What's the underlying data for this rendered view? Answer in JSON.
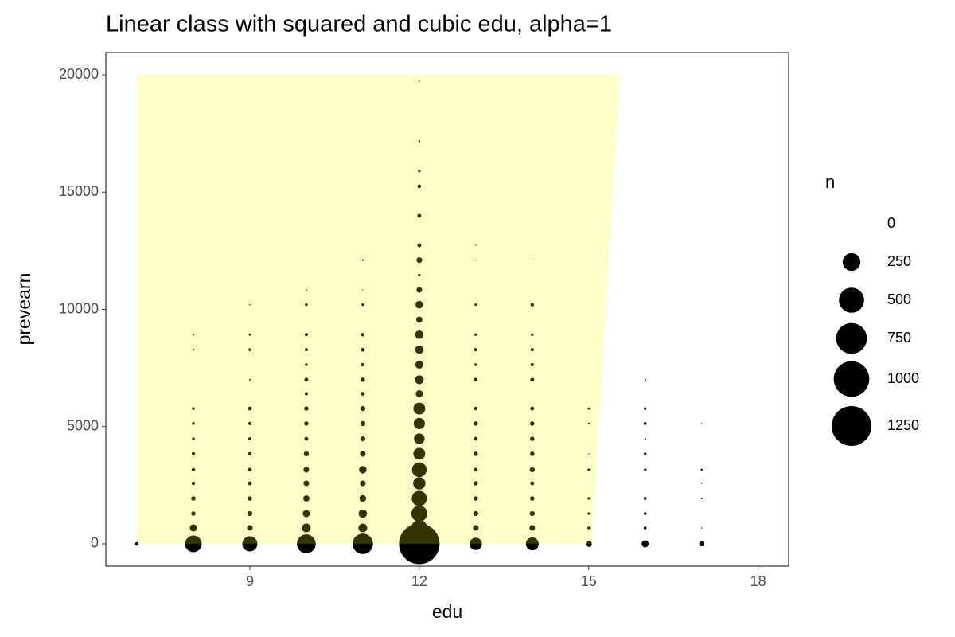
{
  "chart_data": {
    "type": "scatter",
    "title": "Linear class with squared and cubic edu, alpha=1",
    "xlabel": "edu",
    "ylabel": "prevearn",
    "x": [
      7,
      8,
      8,
      8,
      8,
      8,
      8,
      8,
      8,
      8,
      8,
      8,
      8,
      9,
      9,
      9,
      9,
      9,
      9,
      9,
      9,
      9,
      9,
      9,
      9,
      9,
      9,
      10,
      10,
      10,
      10,
      10,
      10,
      10,
      10,
      10,
      10,
      10,
      10,
      10,
      10,
      10,
      10,
      10,
      11,
      11,
      11,
      11,
      11,
      11,
      11,
      11,
      11,
      11,
      11,
      11,
      11,
      11,
      11,
      11,
      11,
      11,
      12,
      12,
      12,
      12,
      12,
      12,
      12,
      12,
      12,
      12,
      12,
      12,
      12,
      12,
      12,
      12,
      12,
      12,
      12,
      12,
      12,
      12,
      12,
      12,
      12,
      12,
      13,
      13,
      13,
      13,
      13,
      13,
      13,
      13,
      13,
      13,
      13,
      13,
      13,
      13,
      13,
      13,
      13,
      14,
      14,
      14,
      14,
      14,
      14,
      14,
      14,
      14,
      14,
      14,
      14,
      14,
      14,
      14,
      14,
      15,
      15,
      15,
      15,
      15,
      15,
      15,
      15,
      16,
      16,
      16,
      16,
      16,
      16,
      16,
      16,
      16,
      16,
      17,
      17,
      17,
      17,
      17,
      17
    ],
    "y": [
      0,
      0,
      680,
      1290,
      1935,
      2580,
      3160,
      3840,
      4480,
      5130,
      5770,
      8280,
      8920,
      0,
      680,
      1290,
      1935,
      2580,
      3160,
      3840,
      4480,
      5130,
      5770,
      7000,
      8280,
      8920,
      10200,
      0,
      680,
      1290,
      1935,
      2580,
      3160,
      3840,
      4480,
      5130,
      5770,
      6400,
      7000,
      7640,
      8280,
      8920,
      10200,
      10830,
      0,
      680,
      1290,
      1935,
      2580,
      3160,
      3840,
      4480,
      5130,
      5770,
      6400,
      7000,
      7640,
      8280,
      8920,
      10200,
      10830,
      12100,
      0,
      680,
      1290,
      1935,
      2580,
      3160,
      3840,
      4480,
      5130,
      5770,
      6400,
      7000,
      7640,
      8280,
      8920,
      9560,
      10200,
      10830,
      11460,
      12100,
      12730,
      13990,
      15250,
      15900,
      17170,
      19720,
      0,
      680,
      1290,
      1935,
      2580,
      3160,
      3840,
      4480,
      5130,
      5770,
      7000,
      7640,
      8280,
      8920,
      10200,
      12100,
      12730,
      0,
      680,
      1290,
      1935,
      2580,
      3160,
      3840,
      4480,
      5130,
      5770,
      7000,
      7640,
      8280,
      8920,
      10200,
      12100,
      0,
      680,
      1290,
      1935,
      3160,
      3840,
      5130,
      5770,
      0,
      680,
      1290,
      1935,
      3160,
      3840,
      4480,
      5130,
      5770,
      7000,
      0,
      680,
      1935,
      2580,
      3160,
      5130
    ],
    "size": [
      10,
      220,
      40,
      15,
      15,
      10,
      10,
      8,
      6,
      6,
      6,
      3,
      3,
      180,
      25,
      20,
      15,
      12,
      12,
      10,
      8,
      8,
      12,
      2,
      6,
      4,
      1,
      280,
      60,
      40,
      30,
      25,
      25,
      20,
      12,
      15,
      15,
      8,
      12,
      6,
      8,
      8,
      6,
      2,
      330,
      60,
      55,
      35,
      25,
      45,
      25,
      20,
      20,
      20,
      12,
      15,
      10,
      12,
      10,
      6,
      1,
      2,
      1300,
      200,
      200,
      180,
      120,
      170,
      110,
      90,
      100,
      110,
      40,
      60,
      50,
      55,
      55,
      30,
      45,
      25,
      5,
      25,
      12,
      12,
      10,
      5,
      3,
      1,
      120,
      25,
      20,
      15,
      15,
      12,
      15,
      12,
      15,
      10,
      12,
      6,
      8,
      6,
      5,
      1,
      1,
      130,
      25,
      20,
      15,
      12,
      20,
      15,
      15,
      15,
      12,
      12,
      8,
      8,
      6,
      10,
      1,
      30,
      6,
      5,
      5,
      5,
      1,
      3,
      4,
      40,
      6,
      6,
      6,
      5,
      5,
      2,
      6,
      5,
      2,
      20,
      1,
      2,
      1,
      3,
      1
    ],
    "color": "#000000",
    "xlim": [
      6.45,
      18.54
    ],
    "ylim": [
      -951,
      20951
    ],
    "xticks": [
      9,
      12,
      15,
      18
    ],
    "yticks": [
      0,
      5000,
      10000,
      15000,
      20000
    ],
    "grid": false,
    "region": {
      "x": [
        7,
        7,
        15.55,
        15.05
      ],
      "y": [
        0,
        20000,
        20000,
        0
      ],
      "color": "#ffff00",
      "alpha": 0.2
    },
    "legend": {
      "title": "n",
      "values": [
        0,
        250,
        500,
        750,
        1000,
        1250
      ]
    }
  }
}
